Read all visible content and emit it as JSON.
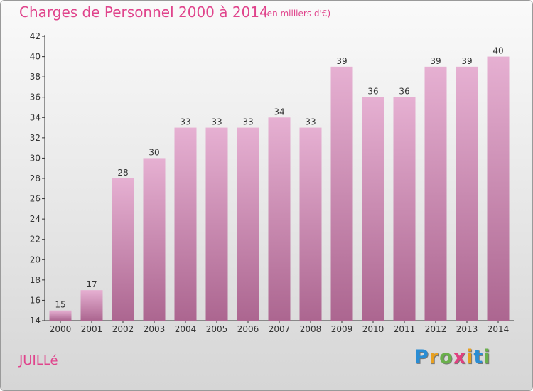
{
  "header": {
    "title": "Charges de Personnel 2000 à 2014",
    "unit": "(en milliers d'€)"
  },
  "footer": {
    "commune": "JUILLé",
    "logo": [
      "P",
      "r",
      "o",
      "x",
      "i",
      "t",
      "i"
    ],
    "logo_colors": [
      "#2a8dd4",
      "#e8a020",
      "#6ab04c",
      "#e04080",
      "#e8a020",
      "#2a8dd4",
      "#6ab04c"
    ]
  },
  "colors": {
    "bar_light": "#e6b0d2",
    "bar_dark": "#ac6690",
    "text": "#e0448c",
    "axis": "#333333"
  },
  "chart_data": {
    "type": "bar",
    "categories": [
      "2000",
      "2001",
      "2002",
      "2003",
      "2004",
      "2005",
      "2006",
      "2007",
      "2008",
      "2009",
      "2010",
      "2011",
      "2012",
      "2013",
      "2014"
    ],
    "values": [
      15,
      17,
      28,
      30,
      33,
      33,
      33,
      34,
      33,
      39,
      36,
      36,
      39,
      39,
      40
    ],
    "title": "Charges de Personnel 2000 à 2014",
    "subtitle": "(en milliers d'€)",
    "ylim": [
      14,
      42
    ],
    "yticks": [
      14,
      16,
      18,
      20,
      22,
      24,
      26,
      28,
      30,
      32,
      34,
      36,
      38,
      40,
      42
    ],
    "grid": false,
    "legend": "none"
  }
}
